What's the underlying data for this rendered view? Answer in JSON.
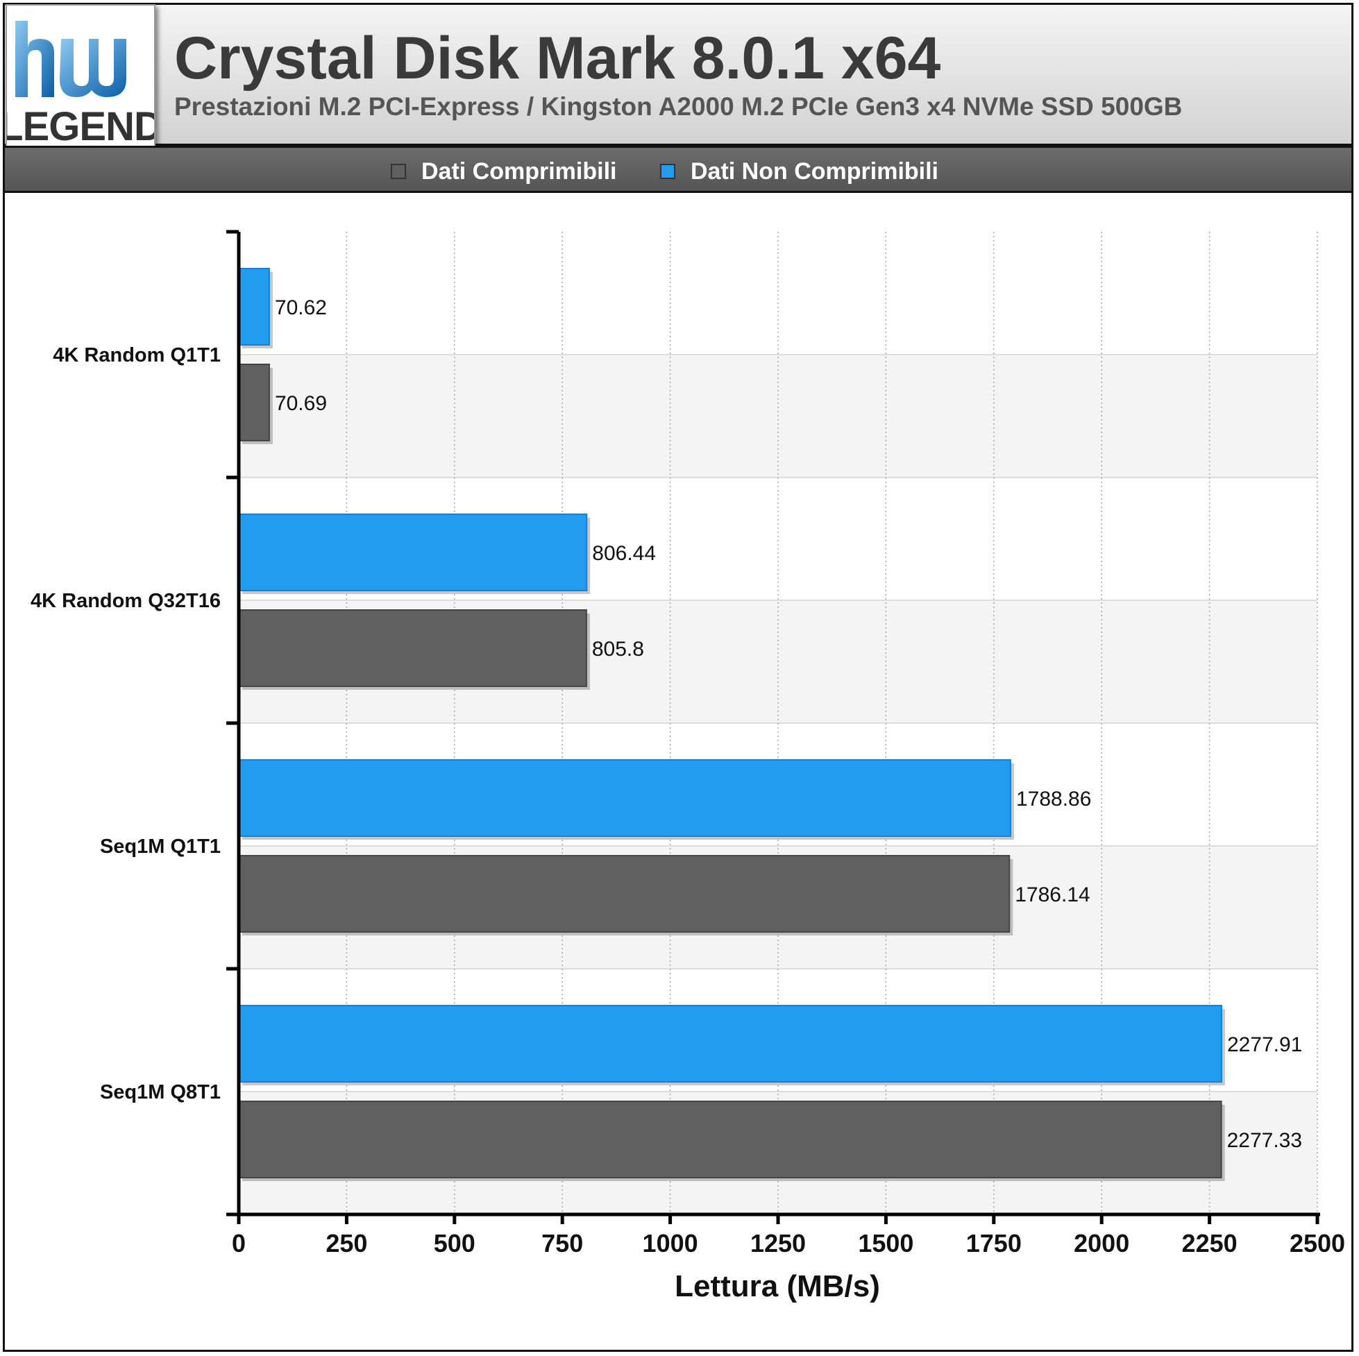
{
  "header": {
    "title": "Crystal Disk Mark 8.0.1 x64",
    "subtitle": "Prestazioni M.2 PCI-Express / Kingston A2000 M.2 PCIe Gen3 x4 NVMe SSD 500GB",
    "logo_text": "LEGEND",
    "logo_mark": "hw"
  },
  "legend": {
    "items": [
      {
        "label": "Dati Comprimibili",
        "color": "#606060"
      },
      {
        "label": "Dati Non Comprimibili",
        "color": "#219cee"
      }
    ]
  },
  "chart_data": {
    "type": "bar",
    "orientation": "horizontal",
    "categories": [
      "4K Random Q1T1",
      "4K Random Q32T16",
      "Seq1M Q1T1",
      "Seq1M Q8T1"
    ],
    "series": [
      {
        "name": "Dati Non Comprimibili",
        "color": "#219cee",
        "values": [
          70.62,
          806.44,
          1788.86,
          2277.91
        ],
        "labels": [
          "70.62",
          "806.44",
          "1788.86",
          "2277.91"
        ]
      },
      {
        "name": "Dati Comprimibili",
        "color": "#606060",
        "values": [
          70.69,
          805.8,
          1786.14,
          2277.33
        ],
        "labels": [
          "70.69",
          "805.8",
          "1786.14",
          "2277.33"
        ]
      }
    ],
    "xlabel": "Lettura (MB/s)",
    "ylabel": "",
    "xlim": [
      0,
      2500
    ],
    "xticks": [
      "0",
      "250",
      "500",
      "750",
      "1000",
      "1250",
      "1500",
      "1750",
      "2000",
      "2250",
      "2500"
    ],
    "grid": true,
    "legend_position": "top"
  }
}
